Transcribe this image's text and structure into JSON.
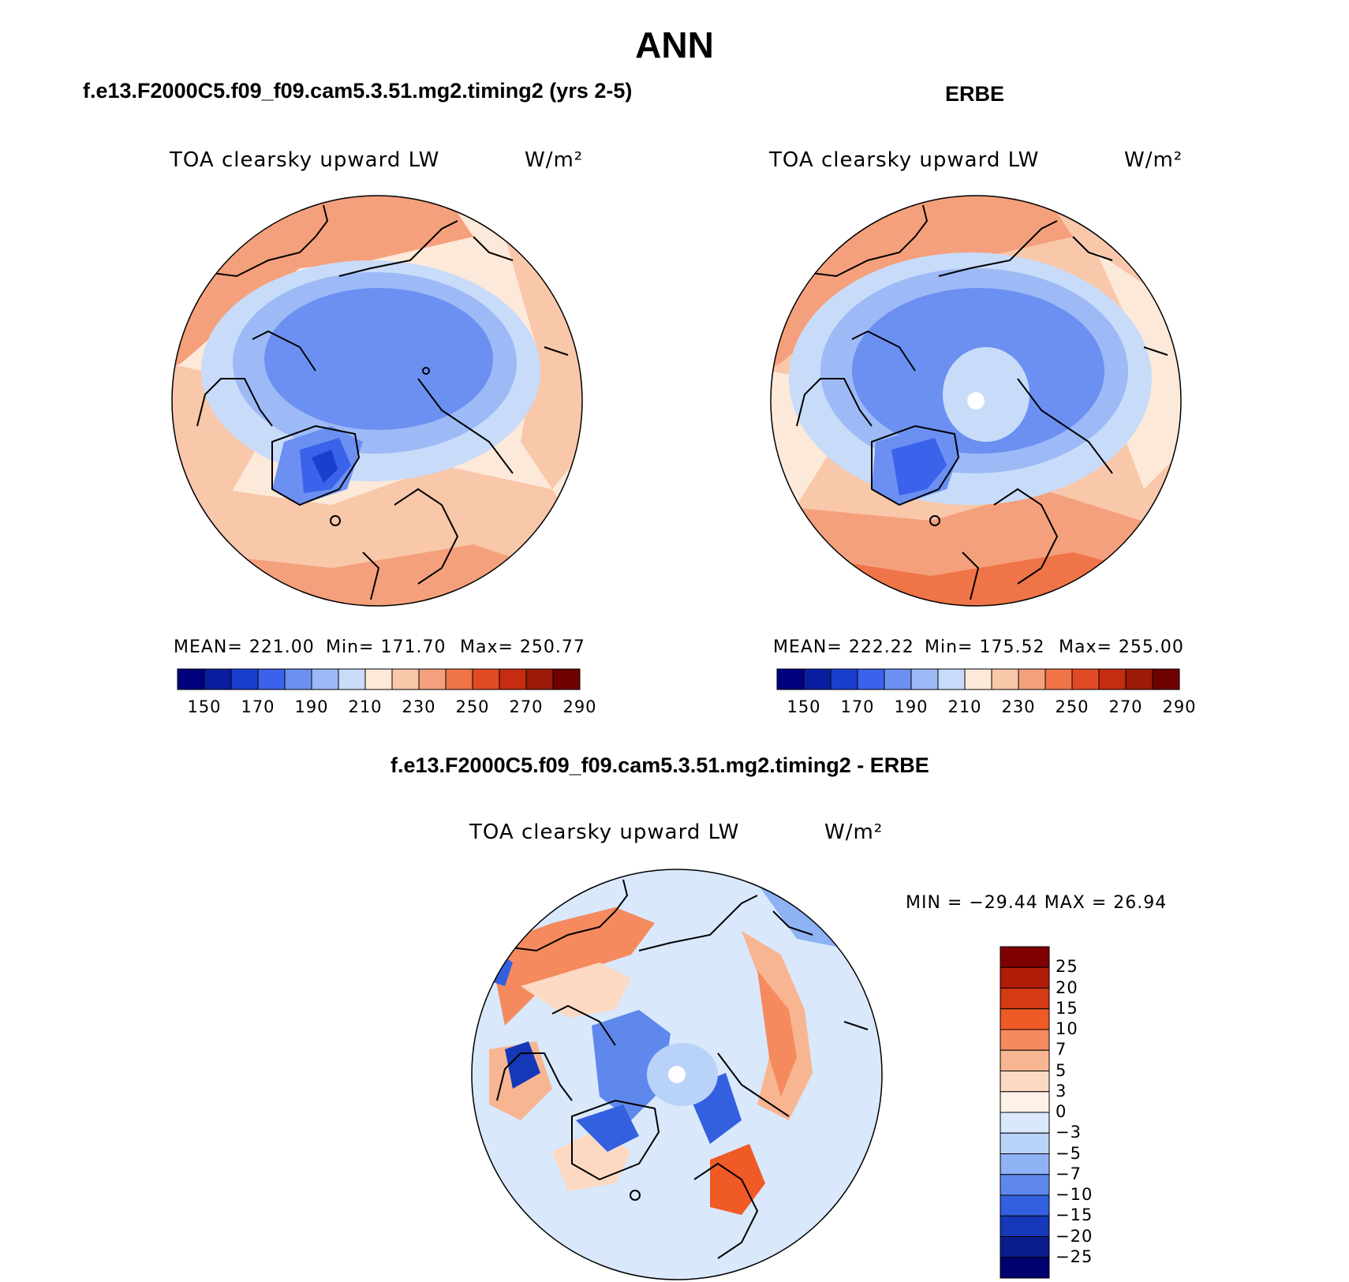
{
  "main_title": "ANN",
  "panels": {
    "model": {
      "case_title": "f.e13.F2000C5.f09_f09.cam5.3.51.mg2.timing2 (yrs 2-5)",
      "variable": "TOA clearsky upward LW",
      "units": "W/m²",
      "mean_label": "MEAN= 221.00",
      "min_label": "Min= 171.70",
      "max_label": "Max= 250.77",
      "mean": 221.0,
      "min": 171.7,
      "max": 250.77
    },
    "obs": {
      "case_title": "ERBE",
      "variable": "TOA clearsky upward LW",
      "units": "W/m²",
      "mean_label": "MEAN= 222.22",
      "min_label": "Min= 175.52",
      "max_label": "Max= 255.00",
      "mean": 222.22,
      "min": 175.52,
      "max": 255.0
    },
    "diff": {
      "case_title": "f.e13.F2000C5.f09_f09.cam5.3.51.mg2.timing2 - ERBE",
      "variable": "TOA clearsky upward LW",
      "units": "W/m²",
      "minmax_label": "MIN = −29.44 MAX =  26.94",
      "min": -29.44,
      "max": 26.94
    }
  },
  "colorbar_abs": {
    "tick_labels": [
      "150",
      "170",
      "190",
      "210",
      "230",
      "250",
      "270",
      "290"
    ],
    "colors": [
      "#00007f",
      "#0a1ea0",
      "#1a3fcf",
      "#3a62ea",
      "#6b90f2",
      "#9dbaf6",
      "#c8dcfa",
      "#fde9d9",
      "#f9c7aa",
      "#f5a07c",
      "#ef7448",
      "#e24a24",
      "#c52c10",
      "#9b1a08",
      "#6e0000"
    ]
  },
  "colorbar_diff": {
    "tick_labels": [
      "25",
      "20",
      "15",
      "10",
      "7",
      "5",
      "3",
      "0",
      "−3",
      "−5",
      "−7",
      "−10",
      "−15",
      "−20",
      "−25"
    ],
    "colors": [
      "#7f0000",
      "#b01c08",
      "#d43a14",
      "#ef5a26",
      "#f48a5e",
      "#f8b592",
      "#fcd9c3",
      "#fef1e6",
      "#d9e8fb",
      "#b9d2f8",
      "#8eb2f3",
      "#5f88ec",
      "#3360df",
      "#1538b8",
      "#081c8c",
      "#00006e"
    ]
  }
}
